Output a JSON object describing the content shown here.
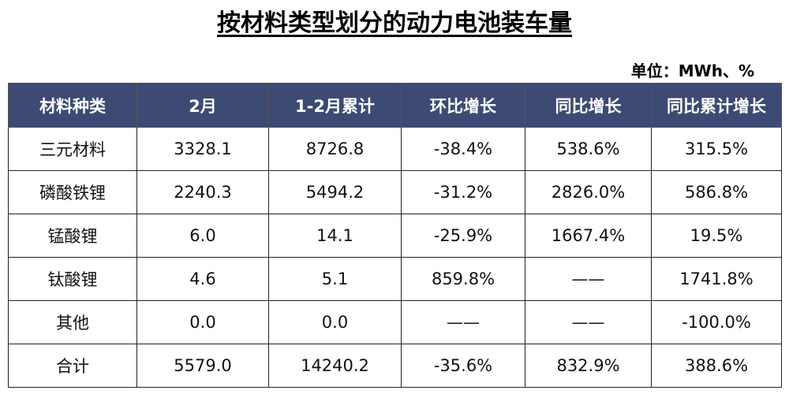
{
  "header": {
    "title": "按材料类型划分的动力电池装车量",
    "unit": "单位：MWh、%"
  },
  "table": {
    "columns": [
      "材料种类",
      "2月",
      "1-2月累计",
      "环比增长",
      "同比增长",
      "同比累计增长"
    ],
    "rows": [
      [
        "三元材料",
        "3328.1",
        "8726.8",
        "-38.4%",
        "538.6%",
        "315.5%"
      ],
      [
        "磷酸铁锂",
        "2240.3",
        "5494.2",
        "-31.2%",
        "2826.0%",
        "586.8%"
      ],
      [
        "锰酸锂",
        "6.0",
        "14.1",
        "-25.9%",
        "1667.4%",
        "19.5%"
      ],
      [
        "钛酸锂",
        "4.6",
        "5.1",
        "859.8%",
        "——",
        "1741.8%"
      ],
      [
        "其他",
        "0.0",
        "0.0",
        "——",
        "——",
        "-100.0%"
      ],
      [
        "合计",
        "5579.0",
        "14240.2",
        "-35.6%",
        "832.9%",
        "388.6%"
      ]
    ]
  }
}
